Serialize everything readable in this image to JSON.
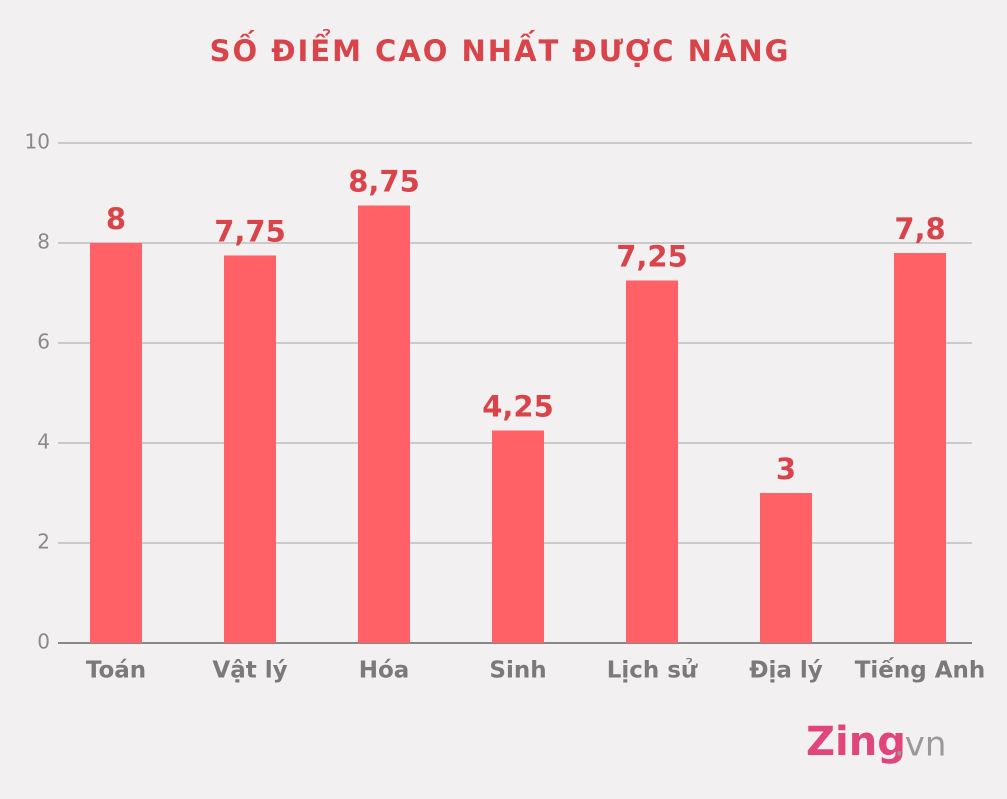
{
  "chart_data": {
    "type": "bar",
    "title": "SỐ ĐIỂM CAO NHẤT ĐƯỢC NÂNG",
    "categories": [
      "Toán",
      "Vật lý",
      "Hóa",
      "Sinh",
      "Lịch sử",
      "Địa lý",
      "Tiếng Anh"
    ],
    "values": [
      8,
      7.75,
      8.75,
      4.25,
      7.25,
      3,
      7.8
    ],
    "value_labels": [
      "8",
      "7,75",
      "8,75",
      "4,25",
      "7,25",
      "3",
      "7,8"
    ],
    "color": "#ff6167",
    "ylim": [
      0,
      10
    ],
    "yticks": [
      0,
      2,
      4,
      6,
      8,
      10
    ],
    "grid": true
  },
  "logo": "Zing",
  "logo_suffix": ".vn"
}
